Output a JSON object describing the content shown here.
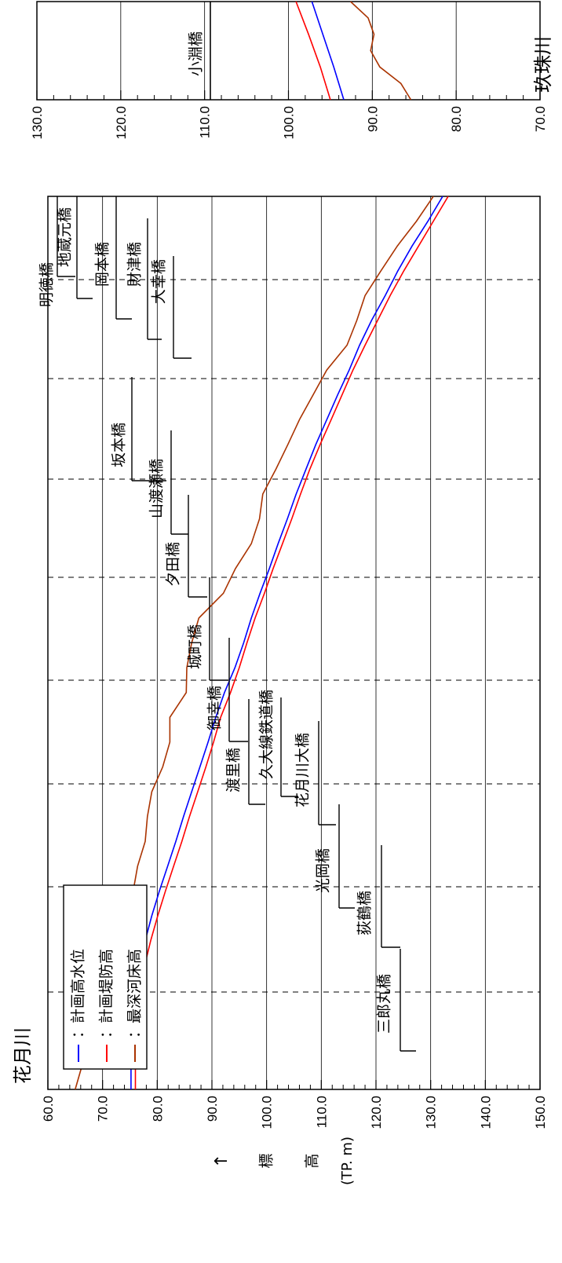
{
  "chart_data": [
    {
      "type": "line",
      "orientation": "rotated-90",
      "title": "花月川",
      "ylabel_arrow": "↑",
      "ylabel_chars": [
        "標",
        "高"
      ],
      "ylabel_unit": "(TP. m)",
      "ylim": [
        60.0,
        150.0
      ],
      "yticks": [
        "60.0",
        "70.0",
        "80.0",
        "90.0",
        "100.0",
        "110.0",
        "120.0",
        "130.0",
        "140.0",
        "150.0"
      ],
      "grid": true,
      "legend_position": "bottom-left",
      "series": [
        {
          "name": "：計画高水位",
          "color": "#0000ff",
          "values": [
            75.2,
            75.2,
            75.2,
            75.4,
            76.0,
            76.8,
            77.8,
            79.0,
            80.4,
            81.9,
            83.4,
            84.8,
            86.3,
            87.8,
            89.3,
            90.7,
            92.3,
            94.2,
            95.8,
            97.2,
            98.8,
            100.5,
            102.1,
            103.8,
            105.4,
            107.2,
            109.0,
            111.0,
            113.0,
            115.1,
            117.0,
            119.2,
            121.7,
            124.0,
            126.6,
            129.5,
            132.2
          ]
        },
        {
          "name": "：計画堤防高",
          "color": "#ff0000",
          "values": [
            76.0,
            76.0,
            76.0,
            76.2,
            76.8,
            77.7,
            78.8,
            80.1,
            81.5,
            83.0,
            84.5,
            85.9,
            87.4,
            88.9,
            90.3,
            91.6,
            93.4,
            95.0,
            96.4,
            97.9,
            99.6,
            101.2,
            102.9,
            104.6,
            106.2,
            107.9,
            109.8,
            111.8,
            113.8,
            115.8,
            118.0,
            120.3,
            122.6,
            125.1,
            127.8,
            130.5,
            133.2
          ]
        },
        {
          "name": "：最深河床高",
          "color": "#aa3300",
          "values": [
            65.0,
            66.3,
            67.3,
            70.6,
            71.3,
            71.5,
            73.0,
            74.6,
            75.6,
            76.4,
            77.8,
            78.2,
            79.0,
            81.0,
            82.3,
            82.3,
            85.3,
            85.4,
            86.3,
            87.6,
            92.1,
            94.3,
            97.2,
            98.7,
            99.3,
            101.7,
            103.9,
            106.0,
            108.5,
            111.0,
            114.7,
            116.5,
            118.0,
            120.9,
            123.9,
            127.4,
            130.5
          ]
        }
      ],
      "bridges": [
        {
          "name": "三郎丸橋"
        },
        {
          "name": "荻鶴橋"
        },
        {
          "name": "光岡橋"
        },
        {
          "name": "花月川大橋"
        },
        {
          "name": "久大線鉄道橋"
        },
        {
          "name": "渡里橋"
        },
        {
          "name": "御幸橋"
        },
        {
          "name": "城町橋"
        },
        {
          "name": "夕田橋"
        },
        {
          "name": "山渡瀬橋"
        },
        {
          "name": "坂本橋"
        },
        {
          "name": "大幸橋"
        },
        {
          "name": "財津橋"
        },
        {
          "name": "岡本橋"
        },
        {
          "name": "地蔵元橋"
        },
        {
          "name": "明徳橋"
        }
      ]
    },
    {
      "type": "line",
      "orientation": "rotated-90",
      "title": "玖珠川",
      "ylim": [
        70.0,
        130.0
      ],
      "yticks": [
        "70.0",
        "80.0",
        "90.0",
        "100.0",
        "110.0",
        "120.0",
        "130.0"
      ],
      "grid": true,
      "series": [
        {
          "name": "計画高水位",
          "color": "#0000ff",
          "values": [
            93.4,
            94.6,
            95.9,
            97.2
          ]
        },
        {
          "name": "計画堤防高",
          "color": "#ff0000",
          "values": [
            95.0,
            96.2,
            97.6,
            99.1
          ]
        },
        {
          "name": "最深河床高",
          "color": "#aa3300",
          "values": [
            85.4,
            86.6,
            89.1,
            90.2,
            89.8,
            90.5,
            92.6
          ]
        }
      ],
      "bridges": [
        {
          "name": "小淵橋"
        }
      ]
    }
  ]
}
